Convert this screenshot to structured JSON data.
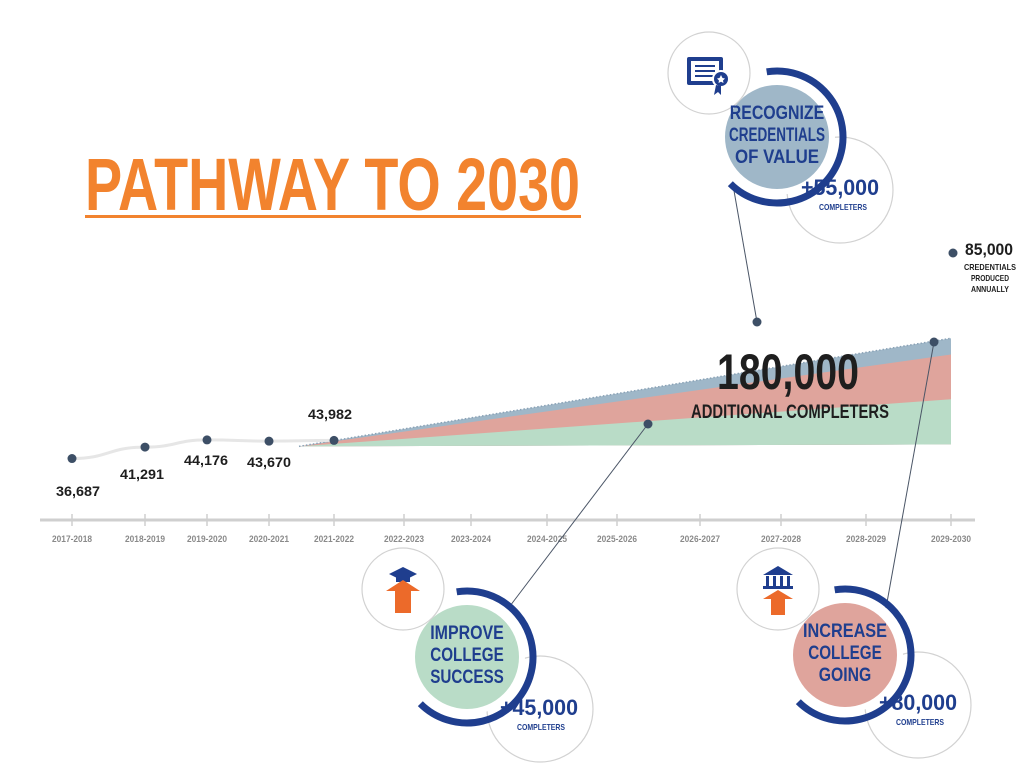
{
  "title": "PATHWAY TO 2030",
  "chart_data": {
    "type": "area",
    "categories": [
      "2017-2018",
      "2018-2019",
      "2019-2020",
      "2020-2021",
      "2021-2022",
      "2022-2023",
      "2023-2024",
      "2024-2025",
      "2025-2026",
      "2026-2027",
      "2027-2028",
      "2028-2029",
      "2029-2030"
    ],
    "historical": [
      {
        "period": "2017-2018",
        "value": 36687,
        "label": "36,687"
      },
      {
        "period": "2018-2019",
        "value": 41291,
        "label": "41,291"
      },
      {
        "period": "2019-2020",
        "value": 44176,
        "label": "44,176"
      },
      {
        "period": "2020-2021",
        "value": 43670,
        "label": "43,670"
      },
      {
        "period": "2021-2022",
        "value": 43982,
        "label": "43,982"
      }
    ],
    "target_label": "85,000",
    "target_caption": [
      "CREDENTIALS",
      "PRODUCED",
      "ANNUALLY"
    ],
    "total_additional": "180,000",
    "total_caption": "ADDITIONAL COMPLETERS",
    "series": [
      {
        "name": "IMPROVE COLLEGE SUCCESS",
        "lines": [
          "IMPROVE",
          "COLLEGE",
          "SUCCESS"
        ],
        "value_label": "+45,000",
        "unit": "COMPLETERS",
        "color": "#b9dcc7"
      },
      {
        "name": "INCREASE COLLEGE GOING",
        "lines": [
          "INCREASE",
          "COLLEGE",
          "GOING"
        ],
        "value_label": "+80,000",
        "unit": "COMPLETERS",
        "color": "#dfa49c"
      },
      {
        "name": "RECOGNIZE CREDENTIALS OF VALUE",
        "lines": [
          "RECOGNIZE",
          "CREDENTIALS",
          "OF VALUE"
        ],
        "value_label": "+55,000",
        "unit": "COMPLETERS",
        "color": "#9fb7c8"
      }
    ],
    "icons": [
      "graduation-arrow-icon",
      "college-building-arrow-icon",
      "credential-certificate-icon"
    ],
    "colors": {
      "title": "#f2832e",
      "navy": "#1f3e8e",
      "text": "#1e1e1e",
      "axis": "#cfcfcf"
    }
  }
}
